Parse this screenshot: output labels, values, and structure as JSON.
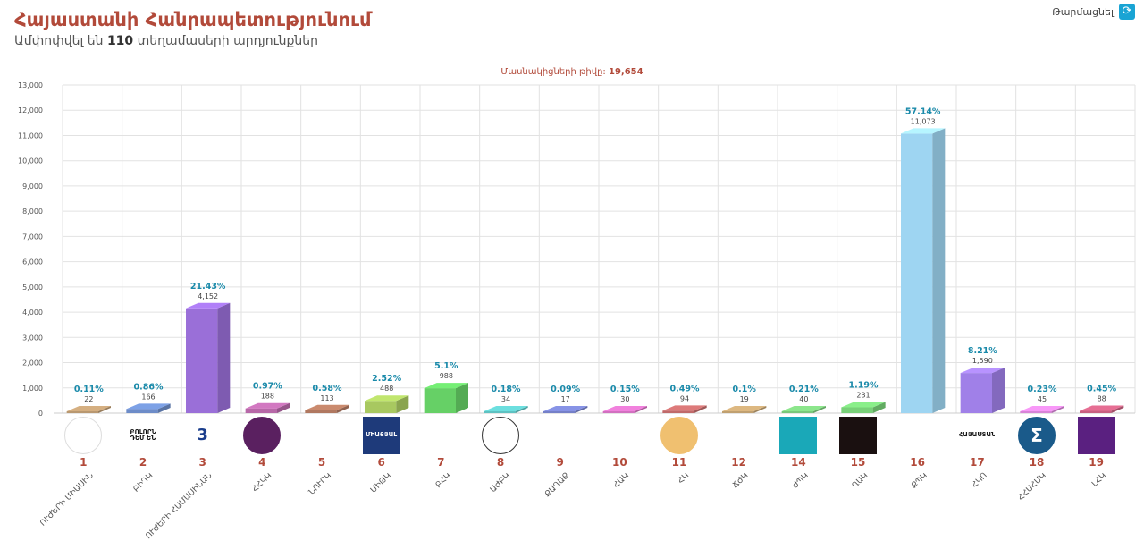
{
  "header": {
    "title": "Հայաստանի Հանրապետությունում",
    "sub_prefix": "Ամփոփվել են",
    "sub_count": "110",
    "sub_suffix": "տեղամասերի արդյունքներ"
  },
  "refresh": {
    "label": "Թարմացնել",
    "icon": "refresh-icon"
  },
  "participants": {
    "label": "Մասնակիցների թիվը:",
    "value": "19,654"
  },
  "chart_data": {
    "type": "bar",
    "ylim": [
      0,
      13000
    ],
    "yticks": [
      "0",
      "1,000",
      "2,000",
      "3,000",
      "4,000",
      "5,000",
      "6,000",
      "7,000",
      "8,000",
      "9,000",
      "10,000",
      "11,000",
      "12,000",
      "13,000"
    ],
    "grid": true,
    "categories": [
      "1",
      "2",
      "3",
      "4",
      "5",
      "6",
      "7",
      "8",
      "9",
      "10",
      "11",
      "12",
      "14",
      "15",
      "16",
      "17",
      "18",
      "19"
    ],
    "values": [
      22,
      166,
      4152,
      188,
      113,
      488,
      988,
      34,
      17,
      30,
      94,
      19,
      40,
      231,
      11073,
      1590,
      45,
      88
    ],
    "value_labels": [
      "22",
      "166",
      "4,152",
      "188",
      "113",
      "488",
      "988",
      "34",
      "17",
      "30",
      "94",
      "19",
      "40",
      "231",
      "11,073",
      "1,590",
      "45",
      "88"
    ],
    "percent_labels": [
      "0.11%",
      "0.86%",
      "21.43%",
      "0.97%",
      "0.58%",
      "2.52%",
      "5.1%",
      "0.18%",
      "0.09%",
      "0.15%",
      "0.49%",
      "0.1%",
      "0.21%",
      "1.19%",
      "57.14%",
      "8.21%",
      "0.23%",
      "0.45%"
    ],
    "colors": [
      "#b99870",
      "#6d8cc8",
      "#9a6fd8",
      "#b768a8",
      "#b07860",
      "#a8c860",
      "#66d066",
      "#5ec2c2",
      "#7580c8",
      "#d270c0",
      "#c06a6a",
      "#c0a070",
      "#7ac87a",
      "#78d078",
      "#9ed5f2",
      "#a080e8",
      "#d884d8",
      "#c86080"
    ],
    "party_names": [
      "ՈՒԺԵՐԻ ՄԻԱՍԻՆ",
      "ԲԻԴԿ",
      "ՈՒԺԵՐԻ ՀԱՄԱՍԻՆԱՆ",
      "ՀՀԿԿ",
      "ՆՈՒՐԿ",
      "ՄԻԹԿ",
      "ԲՀԿ",
      "ԱԺԲԿ",
      "ՔԱՂԱՔ",
      "ՀԱԿ",
      "ՀԿ",
      "ՃԺԿ",
      "ԺՊԿ",
      "ՂԱԿ",
      "ՔՊԿ",
      "ՀԿՈ",
      "ՀՀՍՀՄԿ",
      "ԼՀԿ"
    ]
  },
  "logos": [
    {
      "icon": "hand-flag-icon",
      "text": "",
      "bg": "#ffffff",
      "fg": "#c8382e",
      "border": "#dddddd"
    },
    {
      "icon": "text-logo-icon",
      "text": "ԲՈԼՈՐՆ ԴԵՄ ԵՆ",
      "bg": "#ffffff",
      "fg": "#111111",
      "border": "#ffffff"
    },
    {
      "icon": "number-three-icon",
      "text": "3",
      "bg": "#ffffff",
      "fg": "#1a3d8c",
      "border": "#ffffff"
    },
    {
      "icon": "lion-emblem-icon",
      "text": "",
      "bg": "#5a2060",
      "fg": "#e0b040",
      "border": "#5a2060"
    },
    {
      "icon": "cube-logo-icon",
      "text": "",
      "bg": "#ffffff",
      "fg": "#2a3a8c",
      "border": "#ffffff"
    },
    {
      "icon": "eagle-logo-icon",
      "text": "ՄԻԱՑՅԱԼ",
      "bg": "#1e3a7a",
      "fg": "#ffffff",
      "border": "#1e3a7a"
    },
    {
      "icon": "wing-logo-icon",
      "text": "",
      "bg": "#ffffff",
      "fg": "#2a60c0",
      "border": "#ffffff"
    },
    {
      "icon": "archer-icon",
      "text": "",
      "bg": "#ffffff",
      "fg": "#111111",
      "border": "#333333"
    },
    {
      "icon": "shield-emblem-icon",
      "text": "",
      "bg": "#ffffff",
      "fg": "#c03030",
      "border": "#ffffff"
    },
    {
      "icon": "rainbow-logo-icon",
      "text": "",
      "bg": "#ffffff",
      "fg": "#b03030",
      "border": "#ffffff"
    },
    {
      "icon": "eternity-sign-icon",
      "text": "",
      "bg": "#f0c070",
      "fg": "#8a5a20",
      "border": "#f0c070"
    },
    {
      "icon": "flag-wave-icon",
      "text": "",
      "bg": "#ffffff",
      "fg": "#c03030",
      "border": "#ffffff"
    },
    {
      "icon": "square-brand-icon",
      "text": "",
      "bg": "#1aa8b8",
      "fg": "#ffffff",
      "border": "#1aa8b8"
    },
    {
      "icon": "dark-emblem-icon",
      "text": "",
      "bg": "#1a1010",
      "fg": "#d03030",
      "border": "#1a1010"
    },
    {
      "icon": "diamond-logo-icon",
      "text": "",
      "bg": "#ffffff",
      "fg": "#1a2a60",
      "border": "#ffffff"
    },
    {
      "icon": "text-logo-icon",
      "text": "ՀԱՅԱՍՏԱՆ",
      "bg": "#ffffff",
      "fg": "#111111",
      "border": "#ffffff"
    },
    {
      "icon": "sigma-icon",
      "text": "Σ",
      "bg": "#1a5a8a",
      "fg": "#ffffff",
      "border": "#1a5a8a"
    },
    {
      "icon": "purple-square-icon",
      "text": "",
      "bg": "#5a2080",
      "fg": "#ffffff",
      "border": "#5a2080"
    }
  ]
}
